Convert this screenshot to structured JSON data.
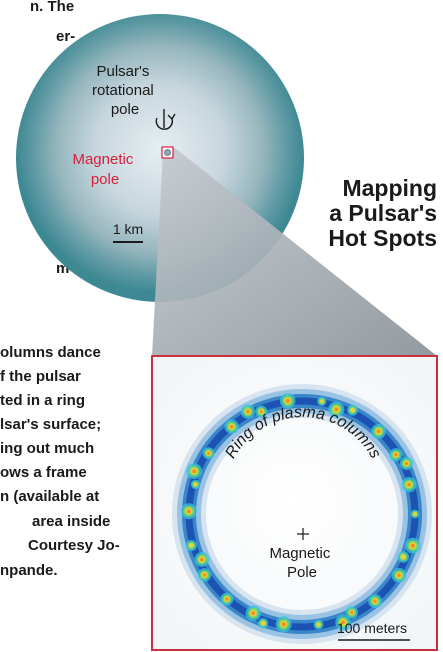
{
  "caption_top": [
    "n. The",
    "er-",
    "m"
  ],
  "caption_bottom": [
    "olumns dance",
    "f the pulsar",
    "ted in a ring",
    "lsar's surface;",
    "ing out much",
    "ows a frame",
    "n (available at",
    "area inside",
    "Courtesy Jo-",
    "npande."
  ],
  "star": {
    "rotational_pole_label": [
      "Pulsar's",
      "rotational",
      "pole"
    ],
    "magnetic_pole_label": [
      "Magnetic",
      "pole"
    ],
    "scale_label": "1 km",
    "magnetic_color": "#d81f3c"
  },
  "title": [
    "Mapping",
    "a Pulsar's",
    "Hot Spots"
  ],
  "inset": {
    "ring_label": "Ring of plasma columns",
    "center_label": [
      "Magnetic",
      "Pole"
    ],
    "scale_label": "100 meters",
    "frame_color": "#c8323f"
  },
  "colors": {
    "star_outer": "#3f8e99",
    "star_inner": "#d9e4ea",
    "beam": "#9ba4ab"
  }
}
